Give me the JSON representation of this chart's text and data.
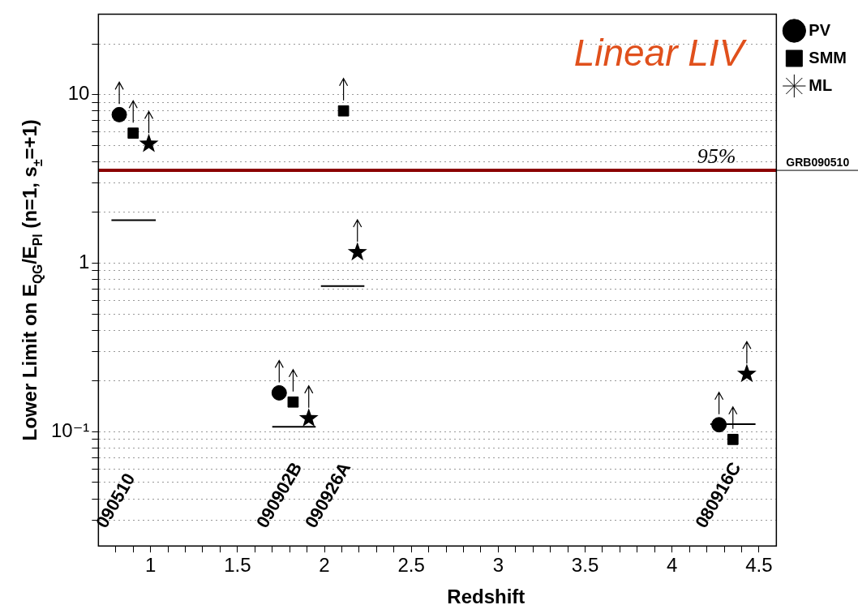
{
  "chart_data": {
    "type": "scatter",
    "title": "Linear LIV",
    "xlabel": "Redshift",
    "ylabel": "Lower Limit on E$_{QG}$/E$_{Pl}$ (n=1, s$_{±}$=+1)",
    "log": "y",
    "grid": "y",
    "legend": "top right",
    "xlim": [
      0.7,
      4.6
    ],
    "xticks": [
      {
        "value": 0.8,
        "label": null
      },
      {
        "value": 0.9,
        "label": null
      },
      1,
      {
        "value": 1.1,
        "label": null
      },
      {
        "value": 1.2,
        "label": null
      },
      {
        "value": 1.3,
        "label": null
      },
      {
        "value": 1.4,
        "label": null
      },
      1.5,
      {
        "value": 1.6,
        "label": null
      },
      {
        "value": 1.7,
        "label": null
      },
      {
        "value": 1.8,
        "label": null
      },
      {
        "value": 1.9,
        "label": null
      },
      2,
      {
        "value": 2.1,
        "label": null
      },
      {
        "value": 2.2,
        "label": null
      },
      {
        "value": 2.3,
        "label": null
      },
      {
        "value": 2.4,
        "label": null
      },
      2.5,
      {
        "value": 2.6,
        "label": null
      },
      {
        "value": 2.7,
        "label": null
      },
      {
        "value": 2.8,
        "label": null
      },
      {
        "value": 2.9,
        "label": null
      },
      3,
      {
        "value": 3.1,
        "label": null
      },
      {
        "value": 3.2,
        "label": null
      },
      {
        "value": 3.3,
        "label": null
      },
      {
        "value": 3.4,
        "label": null
      },
      3.5,
      {
        "value": 3.6,
        "label": null
      },
      {
        "value": 3.7,
        "label": null
      },
      {
        "value": 3.8,
        "label": null
      },
      {
        "value": 3.9,
        "label": null
      },
      4,
      {
        "value": 4.1,
        "label": null
      },
      {
        "value": 4.2,
        "label": null
      },
      {
        "value": 4.3,
        "label": null
      },
      {
        "value": 4.4,
        "label": null
      },
      4.5
    ],
    "ylim": [
      0.021,
      30
    ],
    "yticks": [
      {
        "value": 0.03,
        "label": null
      },
      {
        "value": 0.04,
        "label": null
      },
      {
        "value": 0.05,
        "label": null
      },
      {
        "value": 0.06,
        "label": null
      },
      {
        "value": 0.07,
        "label": null
      },
      {
        "value": 0.08,
        "label": null
      },
      {
        "value": 0.09,
        "label": null
      },
      {
        "value": 0.1,
        "label": "10⁻¹"
      },
      {
        "value": 0.2,
        "label": null
      },
      {
        "value": 0.3,
        "label": null
      },
      {
        "value": 0.4,
        "label": null
      },
      {
        "value": 0.5,
        "label": null
      },
      {
        "value": 0.6,
        "label": null
      },
      {
        "value": 0.7,
        "label": null
      },
      {
        "value": 0.8,
        "label": null
      },
      {
        "value": 0.9,
        "label": null
      },
      1,
      {
        "value": 2,
        "label": null
      },
      {
        "value": 3,
        "label": null
      },
      {
        "value": 4,
        "label": null
      },
      {
        "value": 5,
        "label": null
      },
      {
        "value": 6,
        "label": null
      },
      {
        "value": 7,
        "label": null
      },
      {
        "value": 8,
        "label": null
      },
      {
        "value": 9,
        "label": null
      },
      10,
      {
        "value": 20,
        "label": null
      }
    ],
    "series": [
      {
        "name": "PV",
        "color": "#000000",
        "marker": "circle",
        "x": [
          0.82,
          1.74,
          4.27
        ],
        "values": [
          7.6,
          0.17,
          0.11
        ]
      },
      {
        "name": "SMM",
        "color": "#000000",
        "marker": "square",
        "x": [
          0.9,
          1.82,
          2.11,
          4.35
        ],
        "values": [
          5.9,
          0.15,
          8.0,
          0.09
        ]
      },
      {
        "name": "ML",
        "color": "#000000",
        "marker": "star",
        "x": [
          0.99,
          1.91,
          2.19,
          4.43
        ],
        "values": [
          5.1,
          0.12,
          1.16,
          0.22
        ]
      },
      {
        "type": "line",
        "color": "#000000",
        "marker": "none",
        "x": [
          0.775,
          1.03,
          null,
          1.7,
          1.95,
          null,
          1.98,
          2.23,
          null,
          4.22,
          4.48,
          null
        ],
        "values": [
          1.8,
          1.8,
          null,
          0.107,
          0.107,
          null,
          0.73,
          0.73,
          null,
          0.111,
          0.111,
          null
        ]
      }
    ],
    "ref_lines": [
      {
        "axis": "y",
        "value": 3.55,
        "label": "GRB090510",
        "color": "#8b0000"
      }
    ],
    "annotations": [
      "95%",
      "090510",
      "090902B",
      "090926A",
      "080916C"
    ]
  }
}
